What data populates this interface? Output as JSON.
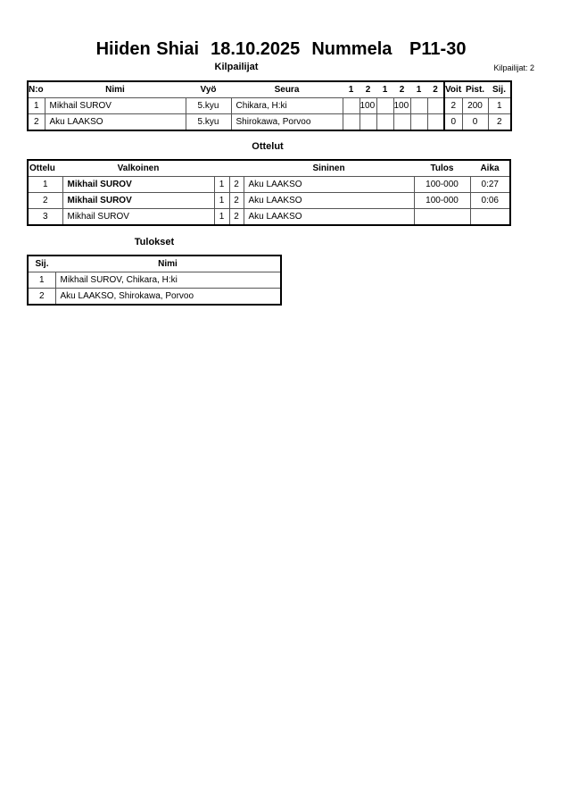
{
  "title": "Hiiden Shiai  18.10.2025  Nummela   P11-30",
  "competitors": {
    "heading": "Kilpailijat",
    "count_label": "Kilpailijat: 2",
    "headers": {
      "no": "N:o",
      "name": "Nimi",
      "belt": "Vyö",
      "club": "Seura",
      "r": [
        "1",
        "2",
        "1",
        "2",
        "1",
        "2"
      ],
      "wins": "Voit.",
      "points": "Pist.",
      "rank": "Sij."
    },
    "rows": [
      {
        "no": "1",
        "name": "Mikhail SUROV",
        "belt": "5.kyu",
        "club": "Chikara, H:ki",
        "r": [
          "",
          "100",
          "",
          "100",
          "",
          ""
        ],
        "wins": "2",
        "points": "200",
        "rank": "1"
      },
      {
        "no": "2",
        "name": "Aku LAAKSO",
        "belt": "5.kyu",
        "club": "Shirokawa, Porvoo",
        "r": [
          "",
          "",
          "",
          "",
          "",
          ""
        ],
        "wins": "0",
        "points": "0",
        "rank": "2"
      }
    ]
  },
  "matches": {
    "heading": "Ottelut",
    "headers": {
      "match": "Ottelu",
      "white": "Valkoinen",
      "blue": "Sininen",
      "result": "Tulos",
      "time": "Aika"
    },
    "rows": [
      {
        "match": "1",
        "white": "Mikhail SUROV",
        "white_winner": true,
        "w": "1",
        "b": "2",
        "blue": "Aku LAAKSO",
        "result": "100-000",
        "time": "0:27"
      },
      {
        "match": "2",
        "white": "Mikhail SUROV",
        "white_winner": true,
        "w": "1",
        "b": "2",
        "blue": "Aku LAAKSO",
        "result": "100-000",
        "time": "0:06"
      },
      {
        "match": "3",
        "white": "Mikhail SUROV",
        "white_winner": false,
        "w": "1",
        "b": "2",
        "blue": "Aku LAAKSO",
        "result": "",
        "time": ""
      }
    ]
  },
  "results": {
    "heading": "Tulokset",
    "headers": {
      "rank": "Sij.",
      "name": "Nimi"
    },
    "rows": [
      {
        "rank": "1",
        "name": "Mikhail SUROV, Chikara, H:ki"
      },
      {
        "rank": "2",
        "name": "Aku LAAKSO, Shirokawa, Porvoo"
      }
    ]
  }
}
